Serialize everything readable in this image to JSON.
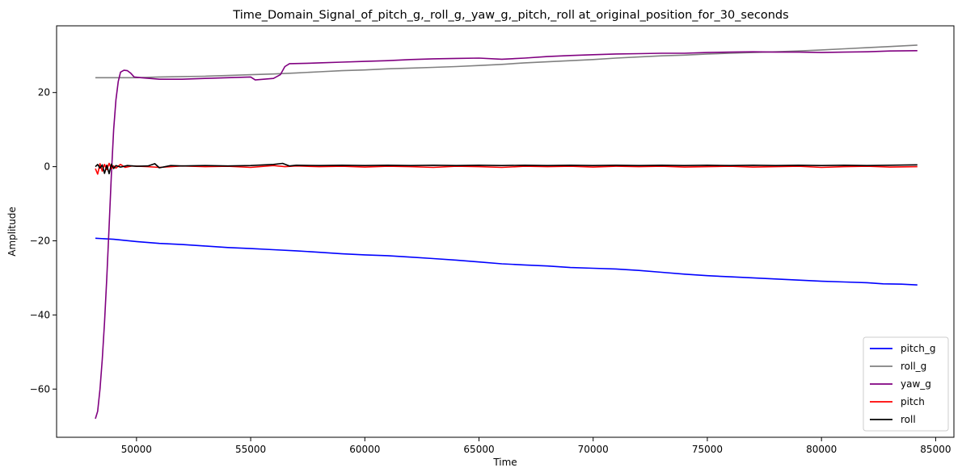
{
  "chart_data": {
    "type": "line",
    "title": "Time_Domain_Signal_of_pitch_g,_roll_g,_yaw_g,_pitch,_roll at_original_position_for_30_seconds",
    "xlabel": "Time",
    "ylabel": "Amplitude",
    "xlim": [
      46500,
      85800
    ],
    "ylim": [
      -73,
      38
    ],
    "xticks": [
      50000,
      55000,
      60000,
      65000,
      70000,
      75000,
      80000,
      85000
    ],
    "yticks": [
      -60,
      -40,
      -20,
      0,
      20
    ],
    "legend_position": "lower-right",
    "grid": false,
    "series": [
      {
        "name": "pitch_g",
        "color": "#0000ff",
        "points": [
          [
            48200,
            -19.3
          ],
          [
            49000,
            -19.6
          ],
          [
            50000,
            -20.2
          ],
          [
            51000,
            -20.7
          ],
          [
            52000,
            -21.0
          ],
          [
            53000,
            -21.4
          ],
          [
            54000,
            -21.8
          ],
          [
            55000,
            -22.1
          ],
          [
            56000,
            -22.4
          ],
          [
            57000,
            -22.7
          ],
          [
            58000,
            -23.1
          ],
          [
            59000,
            -23.5
          ],
          [
            60000,
            -23.8
          ],
          [
            61000,
            -24.0
          ],
          [
            62000,
            -24.4
          ],
          [
            63000,
            -24.8
          ],
          [
            64000,
            -25.2
          ],
          [
            65000,
            -25.7
          ],
          [
            66000,
            -26.2
          ],
          [
            67000,
            -26.5
          ],
          [
            68000,
            -26.8
          ],
          [
            69000,
            -27.2
          ],
          [
            70000,
            -27.4
          ],
          [
            71000,
            -27.6
          ],
          [
            72000,
            -28.0
          ],
          [
            73000,
            -28.5
          ],
          [
            74000,
            -29.0
          ],
          [
            75000,
            -29.4
          ],
          [
            76000,
            -29.7
          ],
          [
            77000,
            -30.0
          ],
          [
            78000,
            -30.3
          ],
          [
            79000,
            -30.6
          ],
          [
            80000,
            -30.9
          ],
          [
            81000,
            -31.1
          ],
          [
            82000,
            -31.3
          ],
          [
            82700,
            -31.6
          ],
          [
            83500,
            -31.7
          ],
          [
            84200,
            -31.9
          ]
        ]
      },
      {
        "name": "roll_g",
        "color": "#808080",
        "points": [
          [
            48200,
            24.0
          ],
          [
            49000,
            24.0
          ],
          [
            50000,
            24.0
          ],
          [
            51000,
            24.2
          ],
          [
            52000,
            24.3
          ],
          [
            53000,
            24.4
          ],
          [
            54000,
            24.6
          ],
          [
            55000,
            24.8
          ],
          [
            56000,
            25.0
          ],
          [
            57000,
            25.3
          ],
          [
            58000,
            25.6
          ],
          [
            59000,
            25.9
          ],
          [
            60000,
            26.1
          ],
          [
            61000,
            26.4
          ],
          [
            62000,
            26.6
          ],
          [
            63000,
            26.8
          ],
          [
            64000,
            27.0
          ],
          [
            65000,
            27.3
          ],
          [
            66000,
            27.6
          ],
          [
            67000,
            28.0
          ],
          [
            68000,
            28.3
          ],
          [
            69000,
            28.6
          ],
          [
            70000,
            28.9
          ],
          [
            71000,
            29.3
          ],
          [
            72000,
            29.6
          ],
          [
            73000,
            29.9
          ],
          [
            74000,
            30.1
          ],
          [
            75000,
            30.4
          ],
          [
            76000,
            30.6
          ],
          [
            77000,
            30.8
          ],
          [
            78000,
            31.0
          ],
          [
            79000,
            31.2
          ],
          [
            80000,
            31.5
          ],
          [
            81000,
            31.8
          ],
          [
            82000,
            32.1
          ],
          [
            83000,
            32.4
          ],
          [
            84200,
            32.8
          ]
        ]
      },
      {
        "name": "yaw_g",
        "color": "#800080",
        "points": [
          [
            48200,
            -68.0
          ],
          [
            48300,
            -66.0
          ],
          [
            48400,
            -60.0
          ],
          [
            48500,
            -52.0
          ],
          [
            48600,
            -42.0
          ],
          [
            48700,
            -30.0
          ],
          [
            48800,
            -16.0
          ],
          [
            48900,
            -2.0
          ],
          [
            49000,
            10.0
          ],
          [
            49100,
            18.0
          ],
          [
            49200,
            23.0
          ],
          [
            49300,
            25.5
          ],
          [
            49450,
            26.0
          ],
          [
            49600,
            25.9
          ],
          [
            49750,
            25.2
          ],
          [
            49900,
            24.2
          ],
          [
            50200,
            24.0
          ],
          [
            51000,
            23.6
          ],
          [
            52000,
            23.6
          ],
          [
            53000,
            23.8
          ],
          [
            54000,
            24.0
          ],
          [
            55000,
            24.2
          ],
          [
            55200,
            23.4
          ],
          [
            56000,
            23.8
          ],
          [
            56300,
            24.8
          ],
          [
            56500,
            27.0
          ],
          [
            56700,
            27.8
          ],
          [
            57500,
            27.9
          ],
          [
            58000,
            28.0
          ],
          [
            59000,
            28.2
          ],
          [
            60000,
            28.4
          ],
          [
            61000,
            28.6
          ],
          [
            62000,
            28.9
          ],
          [
            63000,
            29.1
          ],
          [
            64000,
            29.2
          ],
          [
            65000,
            29.3
          ],
          [
            66000,
            29.0
          ],
          [
            67000,
            29.3
          ],
          [
            68000,
            29.7
          ],
          [
            69000,
            30.0
          ],
          [
            70000,
            30.2
          ],
          [
            71000,
            30.4
          ],
          [
            72000,
            30.5
          ],
          [
            73000,
            30.6
          ],
          [
            74000,
            30.6
          ],
          [
            75000,
            30.8
          ],
          [
            76000,
            30.9
          ],
          [
            77000,
            31.0
          ],
          [
            78000,
            30.9
          ],
          [
            79000,
            30.9
          ],
          [
            80000,
            30.8
          ],
          [
            81000,
            30.9
          ],
          [
            82000,
            31.0
          ],
          [
            83000,
            31.2
          ],
          [
            84200,
            31.3
          ]
        ]
      },
      {
        "name": "pitch",
        "color": "#ff0000",
        "points": [
          [
            48200,
            -0.5
          ],
          [
            48300,
            -2.0
          ],
          [
            48400,
            0.8
          ],
          [
            48500,
            -1.2
          ],
          [
            48600,
            0.6
          ],
          [
            48700,
            -0.8
          ],
          [
            48800,
            0.9
          ],
          [
            48900,
            -0.5
          ],
          [
            49000,
            0.2
          ],
          [
            49100,
            -0.4
          ],
          [
            49300,
            0.6
          ],
          [
            49500,
            -0.2
          ],
          [
            49800,
            0.2
          ],
          [
            50500,
            0.0
          ],
          [
            51000,
            -0.2
          ],
          [
            52000,
            0.2
          ],
          [
            53000,
            0.0
          ],
          [
            54000,
            0.1
          ],
          [
            55000,
            -0.2
          ],
          [
            56000,
            0.3
          ],
          [
            56500,
            0.0
          ],
          [
            57000,
            0.2
          ],
          [
            58000,
            0.0
          ],
          [
            59000,
            0.1
          ],
          [
            60000,
            -0.1
          ],
          [
            61000,
            0.1
          ],
          [
            62000,
            0.0
          ],
          [
            63000,
            -0.2
          ],
          [
            64000,
            0.1
          ],
          [
            65000,
            0.0
          ],
          [
            66000,
            -0.2
          ],
          [
            67000,
            0.1
          ],
          [
            68000,
            0.0
          ],
          [
            69000,
            0.1
          ],
          [
            70000,
            -0.1
          ],
          [
            71000,
            0.1
          ],
          [
            72000,
            0.0
          ],
          [
            73000,
            0.1
          ],
          [
            74000,
            -0.1
          ],
          [
            75000,
            0.0
          ],
          [
            76000,
            0.1
          ],
          [
            77000,
            -0.1
          ],
          [
            78000,
            0.0
          ],
          [
            79000,
            0.1
          ],
          [
            80000,
            -0.2
          ],
          [
            81000,
            0.0
          ],
          [
            82000,
            0.1
          ],
          [
            83000,
            -0.1
          ],
          [
            84200,
            0.0
          ]
        ]
      },
      {
        "name": "roll",
        "color": "#000000",
        "points": [
          [
            48200,
            0.0
          ],
          [
            48300,
            0.6
          ],
          [
            48400,
            -0.4
          ],
          [
            48500,
            0.5
          ],
          [
            48600,
            -1.8
          ],
          [
            48700,
            0.4
          ],
          [
            48800,
            -1.9
          ],
          [
            48900,
            0.7
          ],
          [
            49000,
            -0.5
          ],
          [
            49100,
            0.3
          ],
          [
            49300,
            -0.1
          ],
          [
            49600,
            0.3
          ],
          [
            50000,
            0.1
          ],
          [
            50500,
            0.2
          ],
          [
            50800,
            0.8
          ],
          [
            51000,
            -0.3
          ],
          [
            51500,
            0.3
          ],
          [
            52000,
            0.2
          ],
          [
            53000,
            0.3
          ],
          [
            54000,
            0.2
          ],
          [
            55000,
            0.3
          ],
          [
            56000,
            0.6
          ],
          [
            56400,
            0.9
          ],
          [
            56700,
            0.2
          ],
          [
            57000,
            0.4
          ],
          [
            58000,
            0.3
          ],
          [
            59000,
            0.4
          ],
          [
            60000,
            0.3
          ],
          [
            61000,
            0.4
          ],
          [
            62000,
            0.3
          ],
          [
            63000,
            0.4
          ],
          [
            64000,
            0.3
          ],
          [
            65000,
            0.4
          ],
          [
            66000,
            0.3
          ],
          [
            67000,
            0.4
          ],
          [
            68000,
            0.3
          ],
          [
            69000,
            0.4
          ],
          [
            70000,
            0.3
          ],
          [
            71000,
            0.4
          ],
          [
            72000,
            0.3
          ],
          [
            73000,
            0.4
          ],
          [
            74000,
            0.3
          ],
          [
            75000,
            0.4
          ],
          [
            76000,
            0.3
          ],
          [
            77000,
            0.4
          ],
          [
            78000,
            0.3
          ],
          [
            79000,
            0.4
          ],
          [
            80000,
            0.3
          ],
          [
            81000,
            0.4
          ],
          [
            82000,
            0.3
          ],
          [
            83000,
            0.4
          ],
          [
            84200,
            0.5
          ]
        ]
      }
    ]
  }
}
